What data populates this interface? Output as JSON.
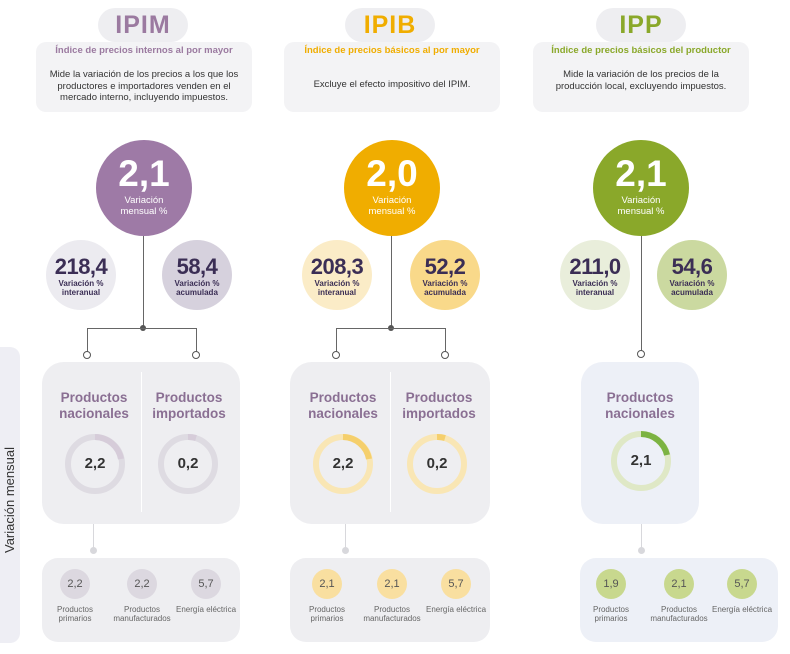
{
  "side_label": "Variación mensual",
  "columns": [
    {
      "title": "IPIM",
      "subtitle": "Índice de precios internos al por mayor",
      "description": "Mide la variación de los precios a los que los productores e importadores venden en el mercado interno, incluyendo impuestos.",
      "monthly_value": "2,1",
      "monthly_label": "Variación mensual %",
      "interannual_value": "218,4",
      "interannual_label": "Variación % interanual",
      "accumulated_value": "58,4",
      "accumulated_label": "Variación % acumulada",
      "products": [
        {
          "label": "Productos nacionales",
          "value": "2,2"
        },
        {
          "label": "Productos importados",
          "value": "0,2"
        }
      ],
      "breakdown": [
        {
          "value": "2,2",
          "label": "Productos primarios"
        },
        {
          "value": "2,2",
          "label": "Productos manufacturados"
        },
        {
          "value": "5,7",
          "label": "Energía eléctrica"
        }
      ],
      "colors": {
        "main": "#9e7aa6",
        "title": "#9b7aa0",
        "light": "#e8e2ea",
        "mid": "#d9d3dc"
      }
    },
    {
      "title": "IPIB",
      "subtitle": "Índice de precios básicos al por mayor",
      "description": "Excluye el efecto impositivo del IPIM.",
      "monthly_value": "2,0",
      "monthly_label": "Variación mensual %",
      "interannual_value": "208,3",
      "interannual_label": "Variación % interanual",
      "accumulated_value": "52,2",
      "accumulated_label": "Variación % acumulada",
      "products": [
        {
          "label": "Productos nacionales",
          "value": "2,2"
        },
        {
          "label": "Productos importados",
          "value": "0,2"
        }
      ],
      "breakdown": [
        {
          "value": "2,1",
          "label": "Productos primarios"
        },
        {
          "value": "2,1",
          "label": "Productos manufacturados"
        },
        {
          "value": "5,7",
          "label": "Energía eléctrica"
        }
      ],
      "colors": {
        "main": "#f0ad00",
        "title": "#f0ad00",
        "light": "#fbecc4",
        "mid": "#f8dc95"
      }
    },
    {
      "title": "IPP",
      "subtitle": "Índice de precios básicos del productor",
      "description": "Mide la variación de los precios de la producción local, excluyendo impuestos.",
      "monthly_value": "2,1",
      "monthly_label": "Variación mensual %",
      "interannual_value": "211,0",
      "interannual_label": "Variación % interanual",
      "accumulated_value": "54,6",
      "accumulated_label": "Variación % acumulada",
      "products": [
        {
          "label": "Productos nacionales",
          "value": "2,1"
        }
      ],
      "breakdown": [
        {
          "value": "1,9",
          "label": "Productos primarios"
        },
        {
          "value": "2,1",
          "label": "Productos manufacturados"
        },
        {
          "value": "5,7",
          "label": "Energía eléctrica"
        }
      ],
      "colors": {
        "main": "#8aa82a",
        "title": "#8aa82a",
        "light": "#e4ecd0",
        "mid": "#c4d596"
      }
    }
  ]
}
